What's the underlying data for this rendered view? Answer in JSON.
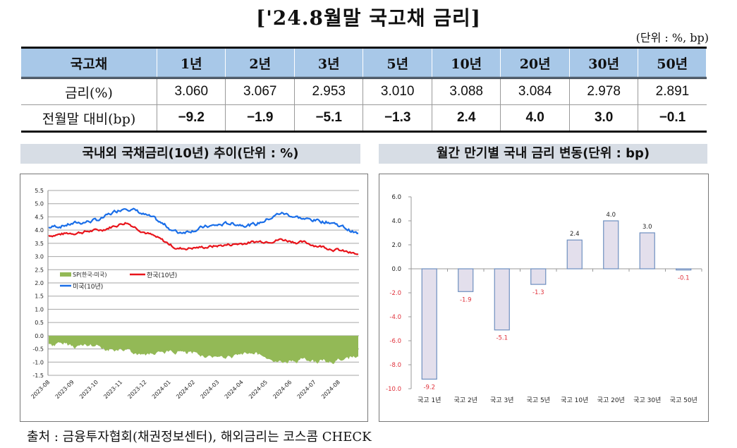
{
  "title": "['24.8월말 국고채 금리]",
  "unit_note": "(단위 : %, bp)",
  "table": {
    "headers": [
      "국고채",
      "1년",
      "2년",
      "3년",
      "5년",
      "10년",
      "20년",
      "30년",
      "50년"
    ],
    "rows": [
      {
        "label": "금리(%)",
        "values": [
          "3.060",
          "3.067",
          "2.953",
          "3.010",
          "3.088",
          "3.084",
          "2.978",
          "2.891"
        ]
      },
      {
        "label": "전월말 대비(bp)",
        "values": [
          "−9.2",
          "−1.9",
          "−5.1",
          "−1.3",
          "2.4",
          "4.0",
          "3.0",
          "−0.1"
        ]
      }
    ]
  },
  "left_section_title": "국내외 국채금리(10년) 추이(단위 : %)",
  "right_section_title": "월간 만기별 국내 금리 변동(단위 : bp)",
  "source": "출처 : 금융투자협회(채권정보센터), 해외금리는 코스콤 CHECK",
  "colors": {
    "korea": "#e8141b",
    "us": "#1a6ee8",
    "spread": "#93b956",
    "bar_fill": "#e3dfec",
    "bar_stroke": "#6e8fc0",
    "neg_label": "#e0303a",
    "header_bg": "#a8c8e8",
    "section_bg": "#d7dde5"
  },
  "chart_data": [
    {
      "type": "line",
      "title": "국내외 국채금리(10년) 추이(단위 : %)",
      "xlabel": "",
      "ylabel": "%",
      "ylim": [
        -1.5,
        5.5
      ],
      "y_ticks": [
        "5.5",
        "5.0",
        "4.5",
        "4.0",
        "3.5",
        "3.0",
        "2.5",
        "2.0",
        "1.5",
        "1.0",
        "0.5",
        "0.0",
        "-0.5",
        "-1.0",
        "-1.5"
      ],
      "categories": [
        "2023-08",
        "2023-09",
        "2023-10",
        "2023-11",
        "2023-12",
        "2024-01",
        "2024-02",
        "2024-03",
        "2024-04",
        "2024-05",
        "2024-06",
        "2024-07",
        "2024-08"
      ],
      "grid": true,
      "legend": [
        "SP(한국-미국)",
        "한국(10년)",
        "미국(10년)"
      ],
      "legend_position": "inside-left",
      "series": [
        {
          "name": "한국(10년)",
          "type": "line",
          "values": [
            3.8,
            3.9,
            4.0,
            4.3,
            3.8,
            3.3,
            3.35,
            3.45,
            3.55,
            3.65,
            3.5,
            3.3,
            3.05
          ]
        },
        {
          "name": "미국(10년)",
          "type": "line",
          "values": [
            4.1,
            4.25,
            4.4,
            4.9,
            4.45,
            3.9,
            4.1,
            4.25,
            4.2,
            4.65,
            4.4,
            4.3,
            3.85
          ]
        },
        {
          "name": "SP(한국-미국)",
          "type": "area",
          "values": [
            -0.3,
            -0.35,
            -0.4,
            -0.6,
            -0.65,
            -0.6,
            -0.75,
            -0.8,
            -0.65,
            -1.0,
            -0.9,
            -1.0,
            -0.8
          ]
        }
      ]
    },
    {
      "type": "bar",
      "title": "월간 만기별 국내 금리 변동(단위 : bp)",
      "categories": [
        "국고 1년",
        "국고 2년",
        "국고 3년",
        "국고 5년",
        "국고 10년",
        "국고 20년",
        "국고 30년",
        "국고 50년"
      ],
      "values": [
        -9.2,
        -1.9,
        -5.1,
        -1.3,
        2.4,
        4.0,
        3.0,
        -0.1
      ],
      "data_labels": [
        "-9.2",
        "-1.9",
        "-5.1",
        "-1.3",
        "2.4",
        "4.0",
        "3.0",
        "-0.1"
      ],
      "y_ticks": [
        "6.0",
        "4.0",
        "2.0",
        "0.0",
        "-2.0",
        "-4.0",
        "-6.0",
        "-8.0",
        "-10.0"
      ],
      "ylim": [
        -10,
        6
      ],
      "xlabel": "",
      "ylabel": "bp",
      "grid": false
    }
  ]
}
